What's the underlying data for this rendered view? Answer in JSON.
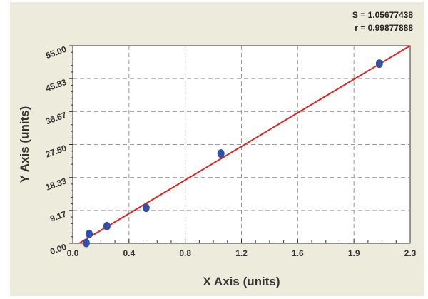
{
  "chart_data": {
    "type": "scatter",
    "xlabel": "X Axis (units)",
    "ylabel": "Y Axis (units)",
    "xlim": [
      0,
      2.3
    ],
    "ylim": [
      0,
      55
    ],
    "x_ticks": [
      "0.0",
      "0.4",
      "0.8",
      "1.2",
      "1.6",
      "1.9",
      "2.3"
    ],
    "y_ticks": [
      "0.00",
      "9.17",
      "18.33",
      "27.50",
      "36.67",
      "45.83",
      "55.00"
    ],
    "grid": true,
    "annotations": {
      "s": "S = 1.05677438",
      "r": "r = 0.99877888"
    },
    "points": {
      "x": [
        0.092,
        0.112,
        0.233,
        0.5,
        1.01,
        2.09
      ],
      "y": [
        0.1,
        2.6,
        4.8,
        9.9,
        25.0,
        50.0
      ]
    },
    "fit_line": {
      "x": [
        0.044,
        2.3
      ],
      "y": [
        0,
        55
      ]
    },
    "colors": {
      "points": "#2f4fa8",
      "fit_line": "#e0231c",
      "background": "#ecebdc"
    }
  }
}
